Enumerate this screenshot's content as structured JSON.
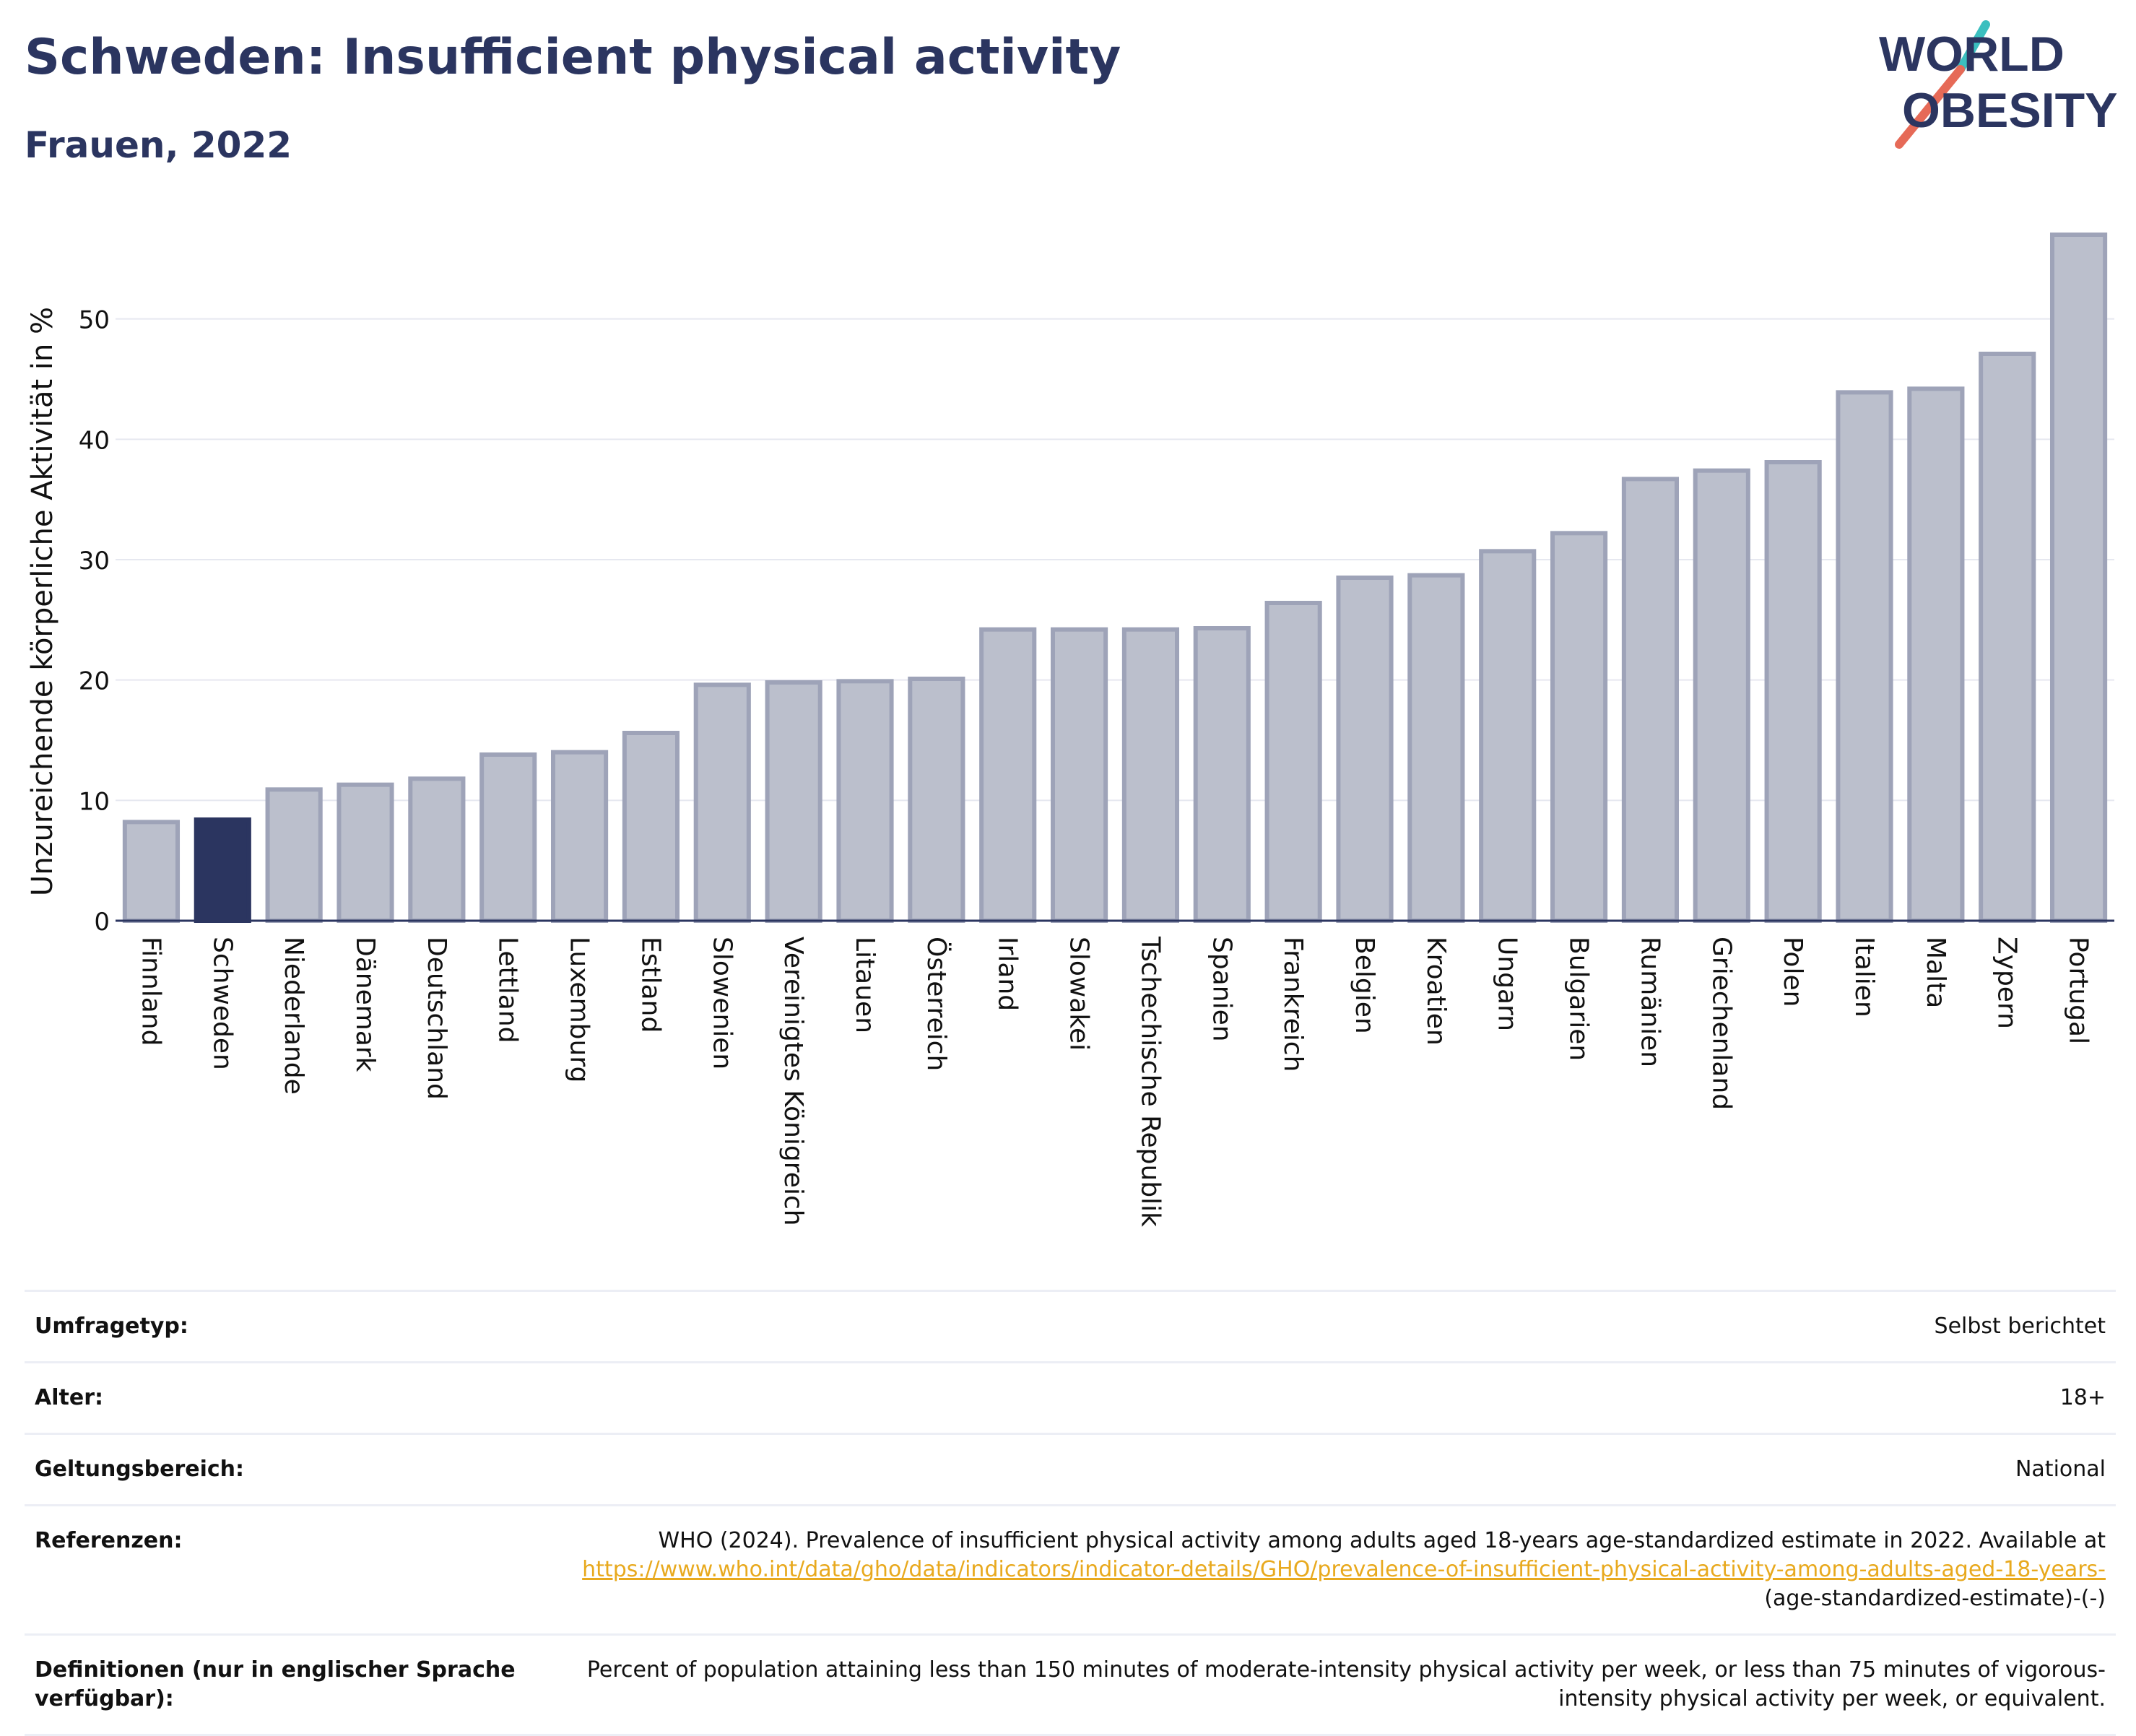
{
  "header": {
    "title": "Schweden: Insufficient physical activity",
    "subtitle": "Frauen, 2022"
  },
  "logo": {
    "line1": "WORLD",
    "line2": "OBESITY",
    "accent_colors": [
      "#3bbfbf",
      "#e66a57"
    ]
  },
  "colors": {
    "bar": "#bbbfcc",
    "bar_stroke": "#9ea3b8",
    "highlight": "#2b3560",
    "text": "#2b3560",
    "grid": "#e6e8f0"
  },
  "chart_data": {
    "type": "bar",
    "ylabel": "Unzureichende körperliche Aktivität in %",
    "xlabel": "",
    "ylim": [
      0,
      57
    ],
    "yticks": [
      0,
      10,
      20,
      30,
      40,
      50
    ],
    "grid": true,
    "highlight": "Schweden",
    "categories": [
      "Finnland",
      "Schweden",
      "Niederlande",
      "Dänemark",
      "Deutschland",
      "Lettland",
      "Luxemburg",
      "Estland",
      "Slowenien",
      "Vereinigtes Königreich",
      "Litauen",
      "Österreich",
      "Irland",
      "Slowakei",
      "Tschechische Republik",
      "Spanien",
      "Frankreich",
      "Belgien",
      "Kroatien",
      "Ungarn",
      "Bulgarien",
      "Rumänien",
      "Griechenland",
      "Polen",
      "Italien",
      "Malta",
      "Zypern",
      "Portugal"
    ],
    "values": [
      8.2,
      8.4,
      10.9,
      11.3,
      11.8,
      13.8,
      14.0,
      15.6,
      19.6,
      19.8,
      19.9,
      20.1,
      24.2,
      24.2,
      24.2,
      24.3,
      26.4,
      28.5,
      28.7,
      30.7,
      32.2,
      36.7,
      37.4,
      38.1,
      43.9,
      44.2,
      47.1,
      57.0
    ]
  },
  "meta": [
    {
      "key": "Umfragetyp:",
      "value": "Selbst berichtet"
    },
    {
      "key": "Alter:",
      "value": "18+"
    },
    {
      "key": "Geltungsbereich:",
      "value": "National"
    }
  ],
  "references": {
    "key": "Referenzen:",
    "text": "WHO (2024). Prevalence of insufficient physical activity among adults aged 18-years age-standardized estimate in 2022. Available at",
    "link": "https://www.who.int/data/gho/data/indicators/indicator-details/GHO/prevalence-of-insufficient-physical-activity-among-adults-aged-18-years-",
    "suffix": "(age-standardized-estimate)-(-)"
  },
  "definitions": {
    "key": "Definitionen (nur in englischer Sprache verfügbar):",
    "value": "Percent of population attaining less than 150 minutes of moderate-intensity physical activity per week, or less than 75 minutes of vigorous-intensity physical activity per week, or equivalent."
  }
}
